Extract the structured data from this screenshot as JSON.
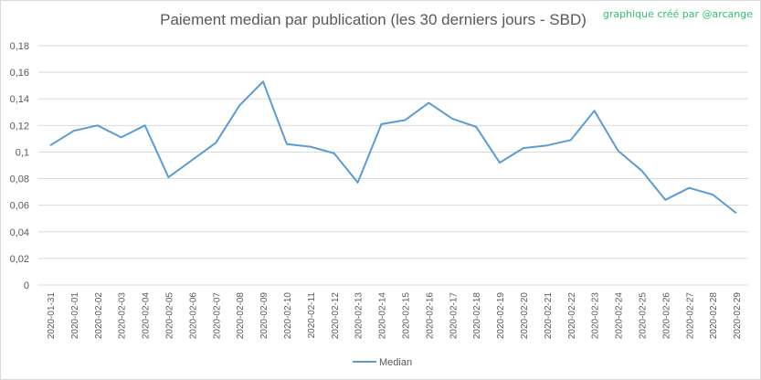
{
  "chart_data": {
    "type": "line",
    "title": "Paiement median par publication (les 30 derniers jours - SBD)",
    "watermark": "graphique créé par @arcange",
    "xlabel": "",
    "ylabel": "",
    "ylim": [
      0,
      0.18
    ],
    "y_ticks": [
      "0",
      "0,02",
      "0,04",
      "0,06",
      "0,08",
      "0,1",
      "0,12",
      "0,14",
      "0,16",
      "0,18"
    ],
    "grid": true,
    "legend": "bottom",
    "x": [
      "2020-01-31",
      "2020-02-01",
      "2020-02-02",
      "2020-02-03",
      "2020-02-04",
      "2020-02-05",
      "2020-02-06",
      "2020-02-07",
      "2020-02-08",
      "2020-02-09",
      "2020-02-10",
      "2020-02-11",
      "2020-02-12",
      "2020-02-13",
      "2020-02-14",
      "2020-02-15",
      "2020-02-16",
      "2020-02-17",
      "2020-02-18",
      "2020-02-19",
      "2020-02-20",
      "2020-02-21",
      "2020-02-22",
      "2020-02-23",
      "2020-02-24",
      "2020-02-25",
      "2020-02-26",
      "2020-02-27",
      "2020-02-28",
      "2020-02-29"
    ],
    "series": [
      {
        "name": "Median",
        "color": "#5b9bd5",
        "values": [
          0.105,
          0.116,
          0.12,
          0.111,
          0.12,
          0.081,
          0.094,
          0.107,
          0.135,
          0.153,
          0.106,
          0.104,
          0.099,
          0.077,
          0.121,
          0.124,
          0.137,
          0.125,
          0.119,
          0.092,
          0.103,
          0.105,
          0.109,
          0.131,
          0.101,
          0.086,
          0.064,
          0.073,
          0.068,
          0.054
        ]
      }
    ]
  },
  "colors": {
    "watermark": "#2fbf71",
    "grid": "#d9d9d9",
    "axis_text": "#595959"
  }
}
